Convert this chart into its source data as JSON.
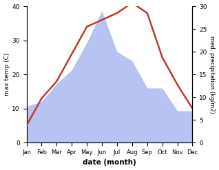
{
  "months": [
    "Jan",
    "Feb",
    "Mar",
    "Apr",
    "May",
    "Jun",
    "Jul",
    "Aug",
    "Sep",
    "Oct",
    "Nov",
    "Dec"
  ],
  "temperature": [
    5,
    13,
    18,
    26,
    34,
    36,
    38,
    41,
    38,
    25,
    17,
    10
  ],
  "precipitation": [
    8,
    9,
    13,
    16,
    22,
    29,
    20,
    18,
    12,
    12,
    7,
    7
  ],
  "temp_color": "#c0392b",
  "precip_color_fill": "#b0bef0",
  "ylabel_left": "max temp (C)",
  "ylabel_right": "med. precipitation (kg/m2)",
  "xlabel": "date (month)",
  "ylim_left": [
    0,
    40
  ],
  "ylim_right": [
    0,
    30
  ],
  "yticks_left": [
    0,
    10,
    20,
    30,
    40
  ],
  "yticks_right": [
    0,
    5,
    10,
    15,
    20,
    25,
    30
  ],
  "background_color": "#ffffff"
}
